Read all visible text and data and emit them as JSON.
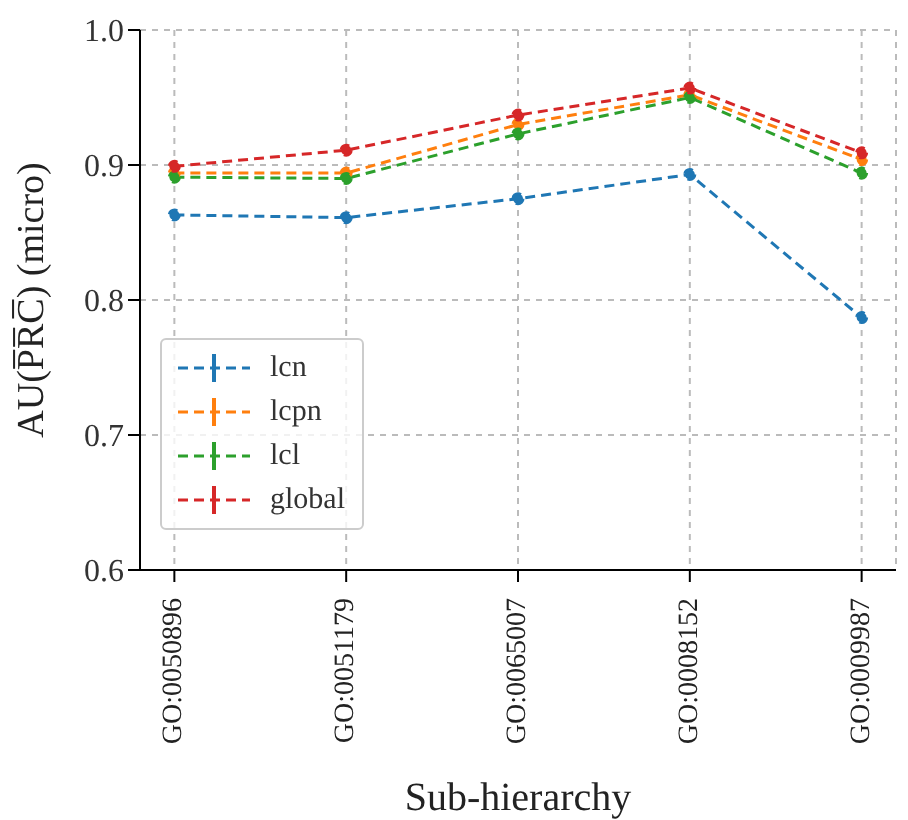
{
  "chart_data": {
    "type": "line",
    "xlabel": "Sub-hierarchy",
    "ylabel": "AU(P̅R̅C̅) (micro)",
    "categories": [
      "GO:0050896",
      "GO:0051179",
      "GO:0065007",
      "GO:0008152",
      "GO:0009987"
    ],
    "series": [
      {
        "name": "lcn",
        "color": "#1f77b4",
        "values": [
          0.863,
          0.861,
          0.875,
          0.893,
          0.787
        ]
      },
      {
        "name": "lcpn",
        "color": "#ff7f0e",
        "values": [
          0.894,
          0.894,
          0.93,
          0.952,
          0.904
        ]
      },
      {
        "name": "lcl",
        "color": "#2ca02c",
        "values": [
          0.891,
          0.89,
          0.923,
          0.95,
          0.894
        ]
      },
      {
        "name": "global",
        "color": "#d62728",
        "values": [
          0.899,
          0.911,
          0.937,
          0.957,
          0.909
        ]
      }
    ],
    "ylim": [
      0.6,
      1.0
    ],
    "yticks": [
      0.6,
      0.7,
      0.8,
      0.9,
      {
        "value": 1,
        "label": "1.0"
      }
    ],
    "grid": true,
    "legend": "bottom left",
    "marker": "circle",
    "line_style": "dashed"
  }
}
